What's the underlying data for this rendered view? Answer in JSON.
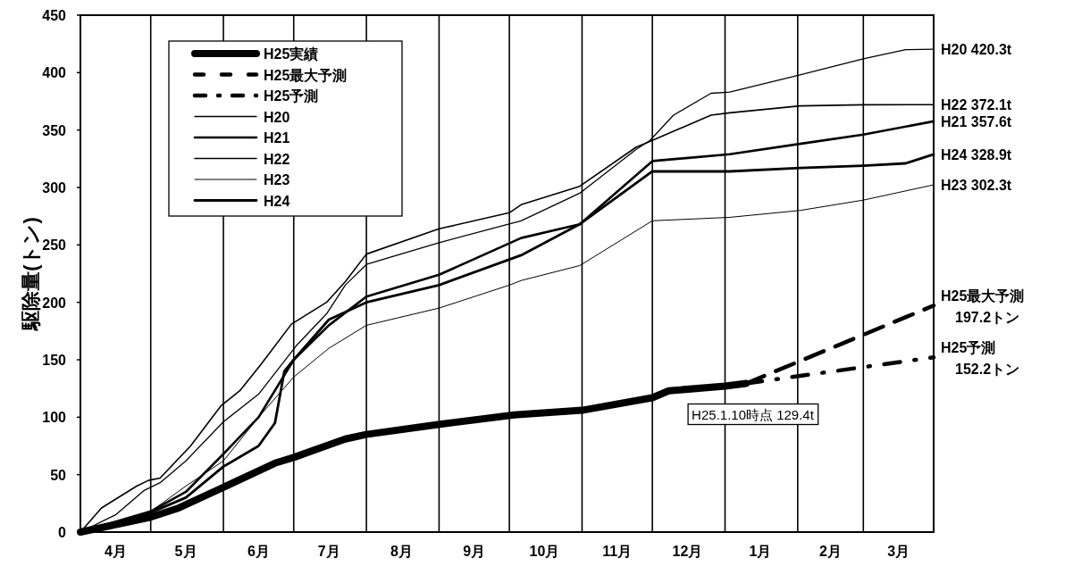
{
  "chart_data": {
    "type": "line",
    "ylabel": "駆除量(トン)",
    "xlim": [
      "2012-04-01",
      "2013-03-31"
    ],
    "ylim": [
      0,
      450
    ],
    "yticks": [
      0,
      50,
      100,
      150,
      200,
      250,
      300,
      350,
      400,
      450
    ],
    "xticks": [
      {
        "value": "2012-04-16",
        "label": "4月"
      },
      {
        "value": "2012-05-16",
        "label": "5月"
      },
      {
        "value": "2012-06-16",
        "label": "6月"
      },
      {
        "value": "2012-07-16",
        "label": "7月"
      },
      {
        "value": "2012-08-16",
        "label": "8月"
      },
      {
        "value": "2012-09-16",
        "label": "9月"
      },
      {
        "value": "2012-10-16",
        "label": "10月"
      },
      {
        "value": "2012-11-16",
        "label": "11月"
      },
      {
        "value": "2012-12-16",
        "label": "12月"
      },
      {
        "value": "2013-01-16",
        "label": "1月"
      },
      {
        "value": "2013-02-15",
        "label": "2月"
      },
      {
        "value": "2013-03-16",
        "label": "3月"
      },
      {
        "value": "2012-05-01",
        "label": null
      },
      {
        "value": "2012-06-01",
        "label": null
      },
      {
        "value": "2012-07-01",
        "label": null
      },
      {
        "value": "2012-08-01",
        "label": null
      },
      {
        "value": "2012-09-01",
        "label": null
      },
      {
        "value": "2012-10-01",
        "label": null
      },
      {
        "value": "2012-11-01",
        "label": null
      },
      {
        "value": "2012-12-01",
        "label": null
      },
      {
        "value": "2013-01-01",
        "label": null
      },
      {
        "value": "2013-02-01",
        "label": null
      },
      {
        "value": "2013-03-01",
        "label": null
      }
    ],
    "grid": "x",
    "legend": "top left",
    "marker": "none",
    "series": [
      {
        "name": "H25実績",
        "color": "#000000",
        "line_style": "solid",
        "x": [
          "2012-04-01",
          "2012-05-01",
          "2012-05-13",
          "2012-06-01",
          "2012-06-23",
          "2012-07-01",
          "2012-07-23",
          "2012-08-01",
          "2012-09-02",
          "2012-10-03",
          "2012-11-01",
          "2012-12-01",
          "2012-12-08",
          "2013-01-01",
          "2013-01-10"
        ],
        "values": [
          0,
          13,
          21,
          39,
          60,
          65,
          81,
          85,
          94,
          102,
          106,
          117,
          123,
          127,
          129.4
        ]
      },
      {
        "name": "H25最大予測",
        "color": "#000000",
        "line_style": "dashed",
        "x": [
          "2013-01-10",
          "2013-03-31"
        ],
        "values": [
          129.4,
          197.2
        ]
      },
      {
        "name": "H25予測",
        "color": "#000000",
        "line_style": "dashdot",
        "x": [
          "2013-01-10",
          "2013-03-31"
        ],
        "values": [
          129.4,
          152.2
        ]
      },
      {
        "name": "H20",
        "color": "#000000",
        "line_style": "solid",
        "x": [
          "2012-04-01",
          "2012-04-16",
          "2012-04-28",
          "2012-05-05",
          "2012-05-16",
          "2012-06-01",
          "2012-06-16",
          "2012-07-02",
          "2012-07-15",
          "2012-07-23",
          "2012-08-01",
          "2012-09-01",
          "2012-10-06",
          "2012-10-31",
          "2012-11-24",
          "2012-11-30",
          "2012-12-10",
          "2012-12-26",
          "2013-01-03",
          "2013-02-02",
          "2013-03-01",
          "2013-03-19",
          "2013-03-31"
        ],
        "values": [
          0,
          15,
          36,
          43,
          62,
          96,
          120,
          162,
          190,
          215,
          233,
          252,
          271,
          295,
          333,
          341,
          363,
          382,
          383,
          398,
          412,
          420,
          420.3
        ]
      },
      {
        "name": "H21",
        "color": "#000000",
        "line_style": "solid",
        "x": [
          "2012-04-01",
          "2012-05-01",
          "2012-05-16",
          "2012-06-01",
          "2012-06-16",
          "2012-07-01",
          "2012-07-16",
          "2012-08-01",
          "2012-09-01",
          "2012-10-06",
          "2012-10-31",
          "2012-12-01",
          "2013-01-03",
          "2013-02-02",
          "2013-03-01",
          "2013-03-31"
        ],
        "values": [
          0,
          18,
          35,
          68,
          100,
          150,
          180,
          205,
          224,
          256,
          268,
          323,
          329,
          338,
          346,
          357.6
        ]
      },
      {
        "name": "H22",
        "color": "#000000",
        "line_style": "solid",
        "x": [
          "2012-04-01",
          "2012-04-10",
          "2012-04-25",
          "2012-04-30",
          "2012-05-05",
          "2012-05-18",
          "2012-05-31",
          "2012-06-08",
          "2012-06-17",
          "2012-06-30",
          "2012-07-15",
          "2012-07-23",
          "2012-08-01",
          "2012-09-01",
          "2012-10-01",
          "2012-10-06",
          "2012-10-31",
          "2012-11-24",
          "2012-12-01",
          "2012-12-26",
          "2013-01-03",
          "2013-02-02",
          "2013-03-01",
          "2013-03-31"
        ],
        "values": [
          0,
          21,
          40,
          45,
          47,
          75,
          110,
          123,
          146,
          181,
          200,
          218,
          242,
          264,
          278,
          285,
          301,
          335,
          341,
          363,
          365,
          371,
          372,
          372.1
        ]
      },
      {
        "name": "H23",
        "color": "#000000",
        "line_style": "solid",
        "x": [
          "2012-04-01",
          "2012-05-01",
          "2012-05-16",
          "2012-06-01",
          "2012-06-16",
          "2012-07-01",
          "2012-07-16",
          "2012-08-01",
          "2012-09-01",
          "2012-10-01",
          "2012-10-06",
          "2012-10-31",
          "2012-12-01",
          "2013-01-03",
          "2013-02-02",
          "2013-03-01",
          "2013-03-31"
        ],
        "values": [
          0,
          18,
          40,
          62,
          100,
          135,
          160,
          180,
          195,
          215,
          219,
          232,
          271,
          274,
          280,
          289,
          302.3
        ]
      },
      {
        "name": "H24",
        "color": "#000000",
        "line_style": "solid",
        "x": [
          "2012-04-01",
          "2012-05-01",
          "2012-05-16",
          "2012-06-01",
          "2012-06-16",
          "2012-06-23",
          "2012-06-27",
          "2012-07-01",
          "2012-07-16",
          "2012-08-01",
          "2012-09-01",
          "2012-10-06",
          "2012-10-31",
          "2012-12-01",
          "2013-01-03",
          "2013-02-02",
          "2013-03-01",
          "2013-03-19",
          "2013-03-31"
        ],
        "values": [
          0,
          17,
          30,
          57,
          75,
          95,
          140,
          150,
          185,
          200,
          215,
          241,
          268,
          314,
          314,
          317,
          319,
          321,
          328.9
        ]
      }
    ],
    "annotations": [
      {
        "text": "H25.1.10時点 129.4t",
        "x": "2013-01-10",
        "y": 129.4
      },
      {
        "text": "H20  420.3t",
        "x": "2013-03-31",
        "y": 420.3
      },
      {
        "text": "H22  372.1t",
        "x": "2013-03-31",
        "y": 372.1
      },
      {
        "text": "H21  357.6t",
        "x": "2013-03-31",
        "y": 357.6
      },
      {
        "text": "H24  328.9t",
        "x": "2013-03-31",
        "y": 328.9
      },
      {
        "text": "H23  302.3t",
        "x": "2013-03-31",
        "y": 302.3
      },
      {
        "text": "H25最大予測\n197.2トン",
        "x": "2013-03-31",
        "y": 197.2
      },
      {
        "text": "H25予測\n152.2トン",
        "x": "2013-03-31",
        "y": 152.2
      }
    ]
  }
}
